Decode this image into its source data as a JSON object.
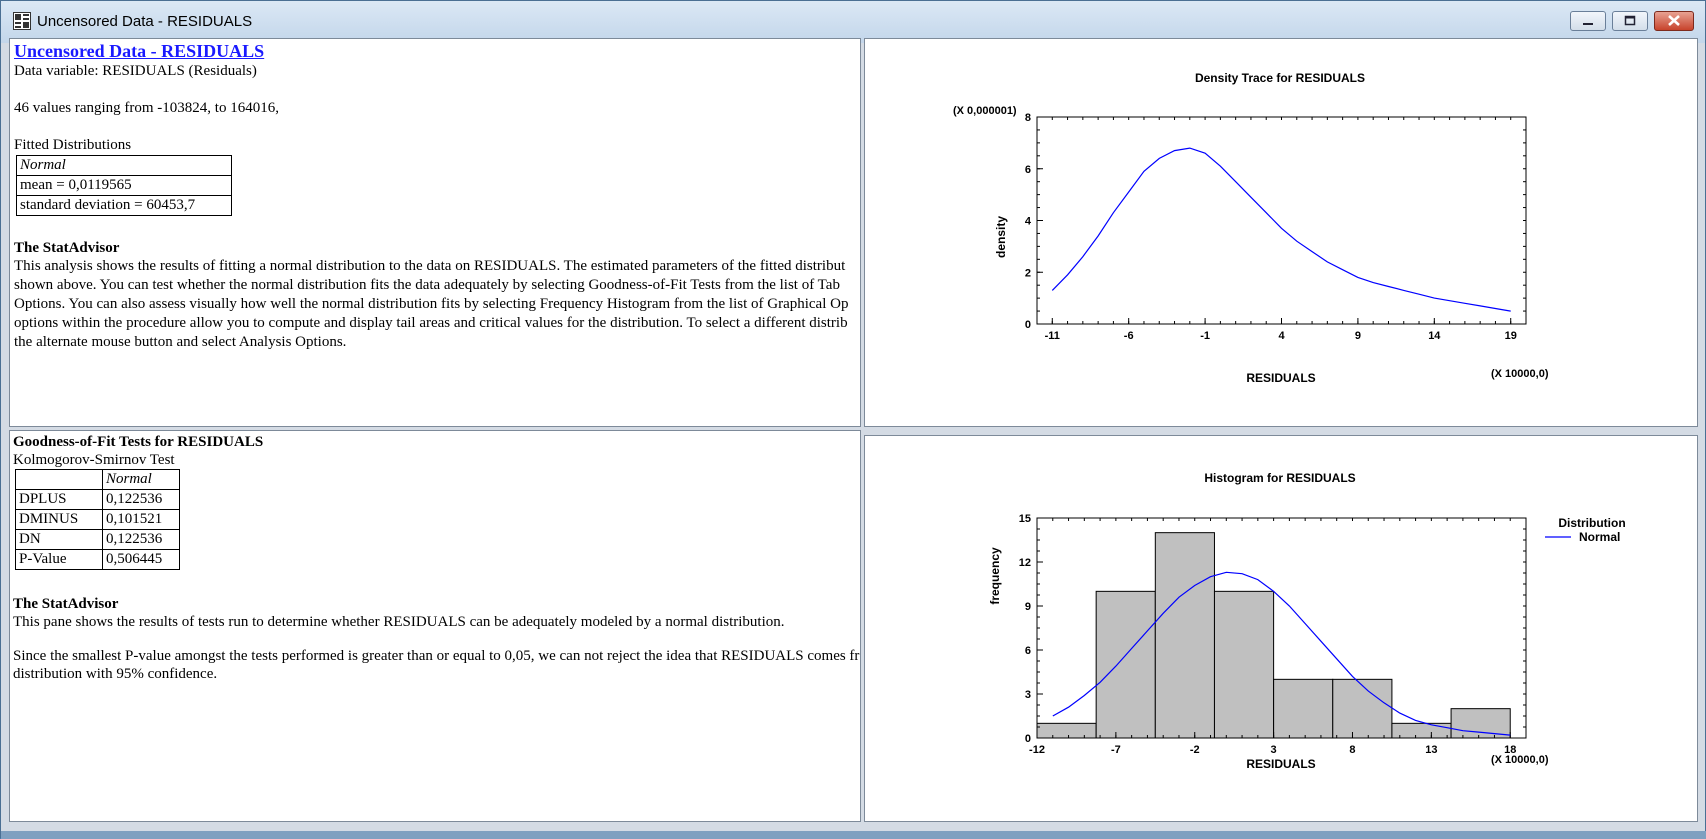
{
  "window": {
    "title": "Uncensored Data - RESIDUALS"
  },
  "pane1": {
    "title": "Uncensored Data - RESIDUALS",
    "data_variable": "Data variable: RESIDUALS (Residuals)",
    "range_text": "46 values ranging from -103824, to 164016,",
    "fitted_label": "Fitted Distributions",
    "dist_header": "Normal",
    "mean": "mean = 0,0119565",
    "sd": "standard deviation = 60453,7",
    "advisor_heading": "The StatAdvisor",
    "advisor_lines": [
      "This analysis shows the results of fitting a normal distribution to the data on RESIDUALS.  The estimated parameters of the fitted distribut",
      "shown above.  You can test whether the normal distribution fits the data adequately by selecting Goodness-of-Fit Tests from the list of Tab",
      "Options.  You can also assess visually how well the normal distribution fits by selecting Frequency Histogram from the list of Graphical Op",
      "options within the procedure allow you to compute and display tail areas and critical values for the distribution.  To select a different distrib",
      "the alternate mouse button and select Analysis Options."
    ]
  },
  "pane2": {
    "title": "Goodness-of-Fit Tests for RESIDUALS",
    "subtitle": "Kolmogorov-Smirnov Test",
    "col_header": "Normal",
    "rows": [
      {
        "label": "DPLUS",
        "value": "0,122536"
      },
      {
        "label": "DMINUS",
        "value": "0,101521"
      },
      {
        "label": "DN",
        "value": "0,122536"
      },
      {
        "label": "P-Value",
        "value": "0,506445"
      }
    ],
    "advisor_heading": "The StatAdvisor",
    "advisor_line1": "This pane shows the results of tests run to determine whether RESIDUALS can be adequately modeled by a normal distribution.",
    "advisor_line2": "Since the smallest P-value amongst the tests performed is greater than or equal to 0,05, we can not reject the idea that RESIDUALS comes fro",
    "advisor_line3": "distribution with 95% confidence."
  },
  "chart_data": [
    {
      "type": "line",
      "title": "Density Trace for RESIDUALS",
      "xlabel": "RESIDUALS",
      "ylabel": "density",
      "x_multiplier": "(X 10000,0)",
      "y_multiplier": "(X 0,000001)",
      "xlim": [
        -12,
        20
      ],
      "ylim": [
        0,
        8
      ],
      "x_ticks": [
        "-11",
        "-6",
        "-1",
        "4",
        "9",
        "14",
        "19"
      ],
      "y_ticks": [
        "0",
        "2",
        "4",
        "6",
        "8"
      ],
      "grid": false,
      "series": [
        {
          "color": "#0000ff",
          "x": [
            -11,
            -10,
            -9,
            -8,
            -7,
            -6,
            -5,
            -4,
            -3,
            -2,
            -1,
            0,
            1,
            2,
            3,
            4,
            5,
            6,
            7,
            8,
            9,
            10,
            11,
            12,
            13,
            14,
            15,
            16,
            17,
            18,
            19
          ],
          "y": [
            1.3,
            1.9,
            2.6,
            3.4,
            4.3,
            5.1,
            5.9,
            6.4,
            6.7,
            6.8,
            6.6,
            6.1,
            5.5,
            4.9,
            4.3,
            3.7,
            3.2,
            2.8,
            2.4,
            2.1,
            1.8,
            1.6,
            1.45,
            1.3,
            1.15,
            1.0,
            0.9,
            0.8,
            0.7,
            0.6,
            0.5
          ]
        }
      ]
    },
    {
      "type": "bar",
      "title": "Histogram for RESIDUALS",
      "xlabel": "RESIDUALS",
      "ylabel": "frequency",
      "x_multiplier": "(X 10000,0)",
      "xlim": [
        -12,
        19
      ],
      "ylim": [
        0,
        15
      ],
      "x_ticks": [
        "-12",
        "-7",
        "-2",
        "3",
        "8",
        "13",
        "18"
      ],
      "y_ticks": [
        "0",
        "3",
        "6",
        "9",
        "12",
        "15"
      ],
      "legend_title": "Distribution",
      "legend_position": "right",
      "bar_color": "#c0c0c0",
      "bins": [
        {
          "start": -12,
          "end": -8.25,
          "count": 1
        },
        {
          "start": -8.25,
          "end": -4.5,
          "count": 10
        },
        {
          "start": -4.5,
          "end": -0.75,
          "count": 14
        },
        {
          "start": -0.75,
          "end": 3,
          "count": 10
        },
        {
          "start": 3,
          "end": 6.75,
          "count": 4
        },
        {
          "start": 6.75,
          "end": 10.5,
          "count": 4
        },
        {
          "start": 10.5,
          "end": 14.25,
          "count": 1
        },
        {
          "start": 14.25,
          "end": 18,
          "count": 2
        }
      ],
      "series": [
        {
          "name": "Normal",
          "color": "#0000ff",
          "x": [
            -11,
            -10,
            -9,
            -8,
            -7,
            -6,
            -5,
            -4,
            -3,
            -2,
            -1,
            0,
            1,
            2,
            3,
            4,
            5,
            6,
            7,
            8,
            9,
            10,
            11,
            12,
            13,
            14,
            15,
            16,
            17,
            18
          ],
          "y": [
            1.5,
            2.1,
            2.9,
            3.8,
            4.9,
            6.1,
            7.3,
            8.5,
            9.6,
            10.4,
            11.0,
            11.3,
            11.2,
            10.8,
            10.0,
            9.0,
            7.8,
            6.6,
            5.4,
            4.2,
            3.2,
            2.4,
            1.7,
            1.2,
            0.9,
            0.7,
            0.5,
            0.4,
            0.3,
            0.2
          ]
        }
      ]
    }
  ]
}
